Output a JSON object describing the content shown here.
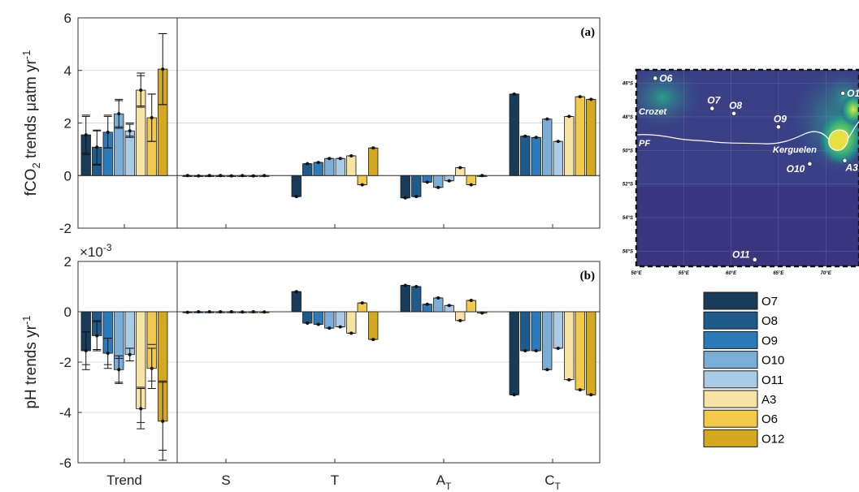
{
  "colors": {
    "O7": "#193c5a",
    "O8": "#1e5a8a",
    "O9": "#2b7bbb",
    "O10": "#7aaed6",
    "O11": "#a9cbe6",
    "A3": "#f7e4a5",
    "O6": "#f2c948",
    "O12": "#d4a81f"
  },
  "chart_data": [
    {
      "id": "a",
      "type": "bar",
      "panel_label": "(a)",
      "ylabel": "fCO2 trends μatm yr-1",
      "ylabel_main": "fCO",
      "ylabel_sub": "2",
      "ylabel_rest": " trends μatm yr",
      "ylabel_sup": "-1",
      "ylim": [
        -2,
        6
      ],
      "yticks": [
        -2,
        0,
        2,
        4,
        6
      ],
      "multiplier": "",
      "categories": [
        "Trend",
        "S",
        "T",
        "AT",
        "CT"
      ],
      "series_names": [
        "O7",
        "O8",
        "O9",
        "O10",
        "O11",
        "A3",
        "O6",
        "O12"
      ],
      "values": [
        [
          1.55,
          1.08,
          1.65,
          2.35,
          1.7,
          3.25,
          2.2,
          4.05
        ],
        [
          0.0,
          -0.01,
          0.0,
          0.0,
          -0.01,
          0.0,
          -0.01,
          0.0
        ],
        [
          -0.8,
          0.45,
          0.5,
          0.65,
          0.65,
          0.75,
          -0.35,
          1.05
        ],
        [
          -0.85,
          -0.8,
          -0.25,
          -0.45,
          -0.2,
          0.3,
          -0.35,
          0.0
        ],
        [
          3.1,
          1.5,
          1.45,
          2.15,
          1.3,
          2.25,
          3.0,
          2.9
        ]
      ],
      "trend_error": [
        0.7,
        0.65,
        0.6,
        0.55,
        0.25,
        0.65,
        0.9,
        1.35
      ],
      "trend_inner": [
        [
          0.8,
          2.3
        ],
        [
          0.4,
          1.7
        ],
        [
          1.05,
          2.3
        ],
        [
          1.85,
          2.85
        ],
        [
          1.5,
          2.0
        ],
        [
          2.65,
          3.8
        ],
        [
          1.3,
          3.1
        ],
        [
          2.7,
          5.4
        ]
      ]
    },
    {
      "id": "b",
      "type": "bar",
      "panel_label": "(b)",
      "ylabel": "pH trends yr-1",
      "ylabel_main": "pH trends yr",
      "ylabel_sub": "",
      "ylabel_rest": "",
      "ylabel_sup": "-1",
      "ylim": [
        -6,
        2
      ],
      "yticks": [
        -6,
        -4,
        -2,
        0,
        2
      ],
      "multiplier": "×10",
      "multiplier_exp": "-3",
      "categories": [
        "Trend",
        "S",
        "T",
        "AT",
        "CT"
      ],
      "series_names": [
        "O7",
        "O8",
        "O9",
        "O10",
        "O11",
        "A3",
        "O6",
        "O12"
      ],
      "values": [
        [
          -1.55,
          -0.95,
          -1.65,
          -2.3,
          -1.7,
          -3.85,
          -2.25,
          -4.35
        ],
        [
          -0.02,
          0.0,
          0.0,
          0.0,
          0.0,
          -0.01,
          0.0,
          -0.01
        ],
        [
          0.8,
          -0.45,
          -0.5,
          -0.65,
          -0.6,
          -0.85,
          0.35,
          -1.1
        ],
        [
          1.05,
          1.0,
          0.3,
          0.55,
          0.25,
          -0.35,
          0.45,
          -0.05
        ],
        [
          -3.3,
          -1.55,
          -1.55,
          -2.3,
          -1.45,
          -2.7,
          -3.1,
          -3.3
        ]
      ],
      "trend_error": [
        0.75,
        0.6,
        0.6,
        0.55,
        0.25,
        0.8,
        0.8,
        1.55
      ],
      "trend_inner": [
        [
          -2.1,
          -0.8
        ],
        [
          -1.5,
          -0.4
        ],
        [
          -2.1,
          -1.05
        ],
        [
          -2.8,
          -1.85
        ],
        [
          -1.95,
          -1.45
        ],
        [
          -4.4,
          -3.0
        ],
        [
          -2.75,
          -1.3
        ],
        [
          -5.5,
          -2.75
        ]
      ]
    }
  ],
  "category_labels": [
    {
      "main": "Trend",
      "sub": ""
    },
    {
      "main": "S",
      "sub": ""
    },
    {
      "main": "T",
      "sub": ""
    },
    {
      "main": "A",
      "sub": "T"
    },
    {
      "main": "C",
      "sub": "T"
    }
  ],
  "legend": [
    "O7",
    "O8",
    "O9",
    "O10",
    "O11",
    "A3",
    "O6",
    "O12"
  ],
  "map": {
    "lat_labels": [
      "46°S",
      "48°S",
      "50°S",
      "52°S",
      "54°S",
      "56°S"
    ],
    "lon_labels": [
      "50°E",
      "55°E",
      "60°E",
      "65°E",
      "70°E"
    ],
    "places": [
      "Crozet",
      "PF",
      "Kerguelen"
    ],
    "stations": [
      {
        "label": "O6",
        "lon": 52.0,
        "lat": 45.7
      },
      {
        "label": "O7",
        "lon": 58.0,
        "lat": 47.5
      },
      {
        "label": "O8",
        "lon": 60.3,
        "lat": 47.8
      },
      {
        "label": "O9",
        "lon": 65.0,
        "lat": 48.6
      },
      {
        "label": "O10",
        "lon": 68.3,
        "lat": 50.8
      },
      {
        "label": "O11",
        "lon": 62.5,
        "lat": 56.5
      },
      {
        "label": "O1",
        "lon": 71.8,
        "lat": 46.6
      },
      {
        "label": "A3",
        "lon": 72.0,
        "lat": 50.6
      }
    ]
  }
}
